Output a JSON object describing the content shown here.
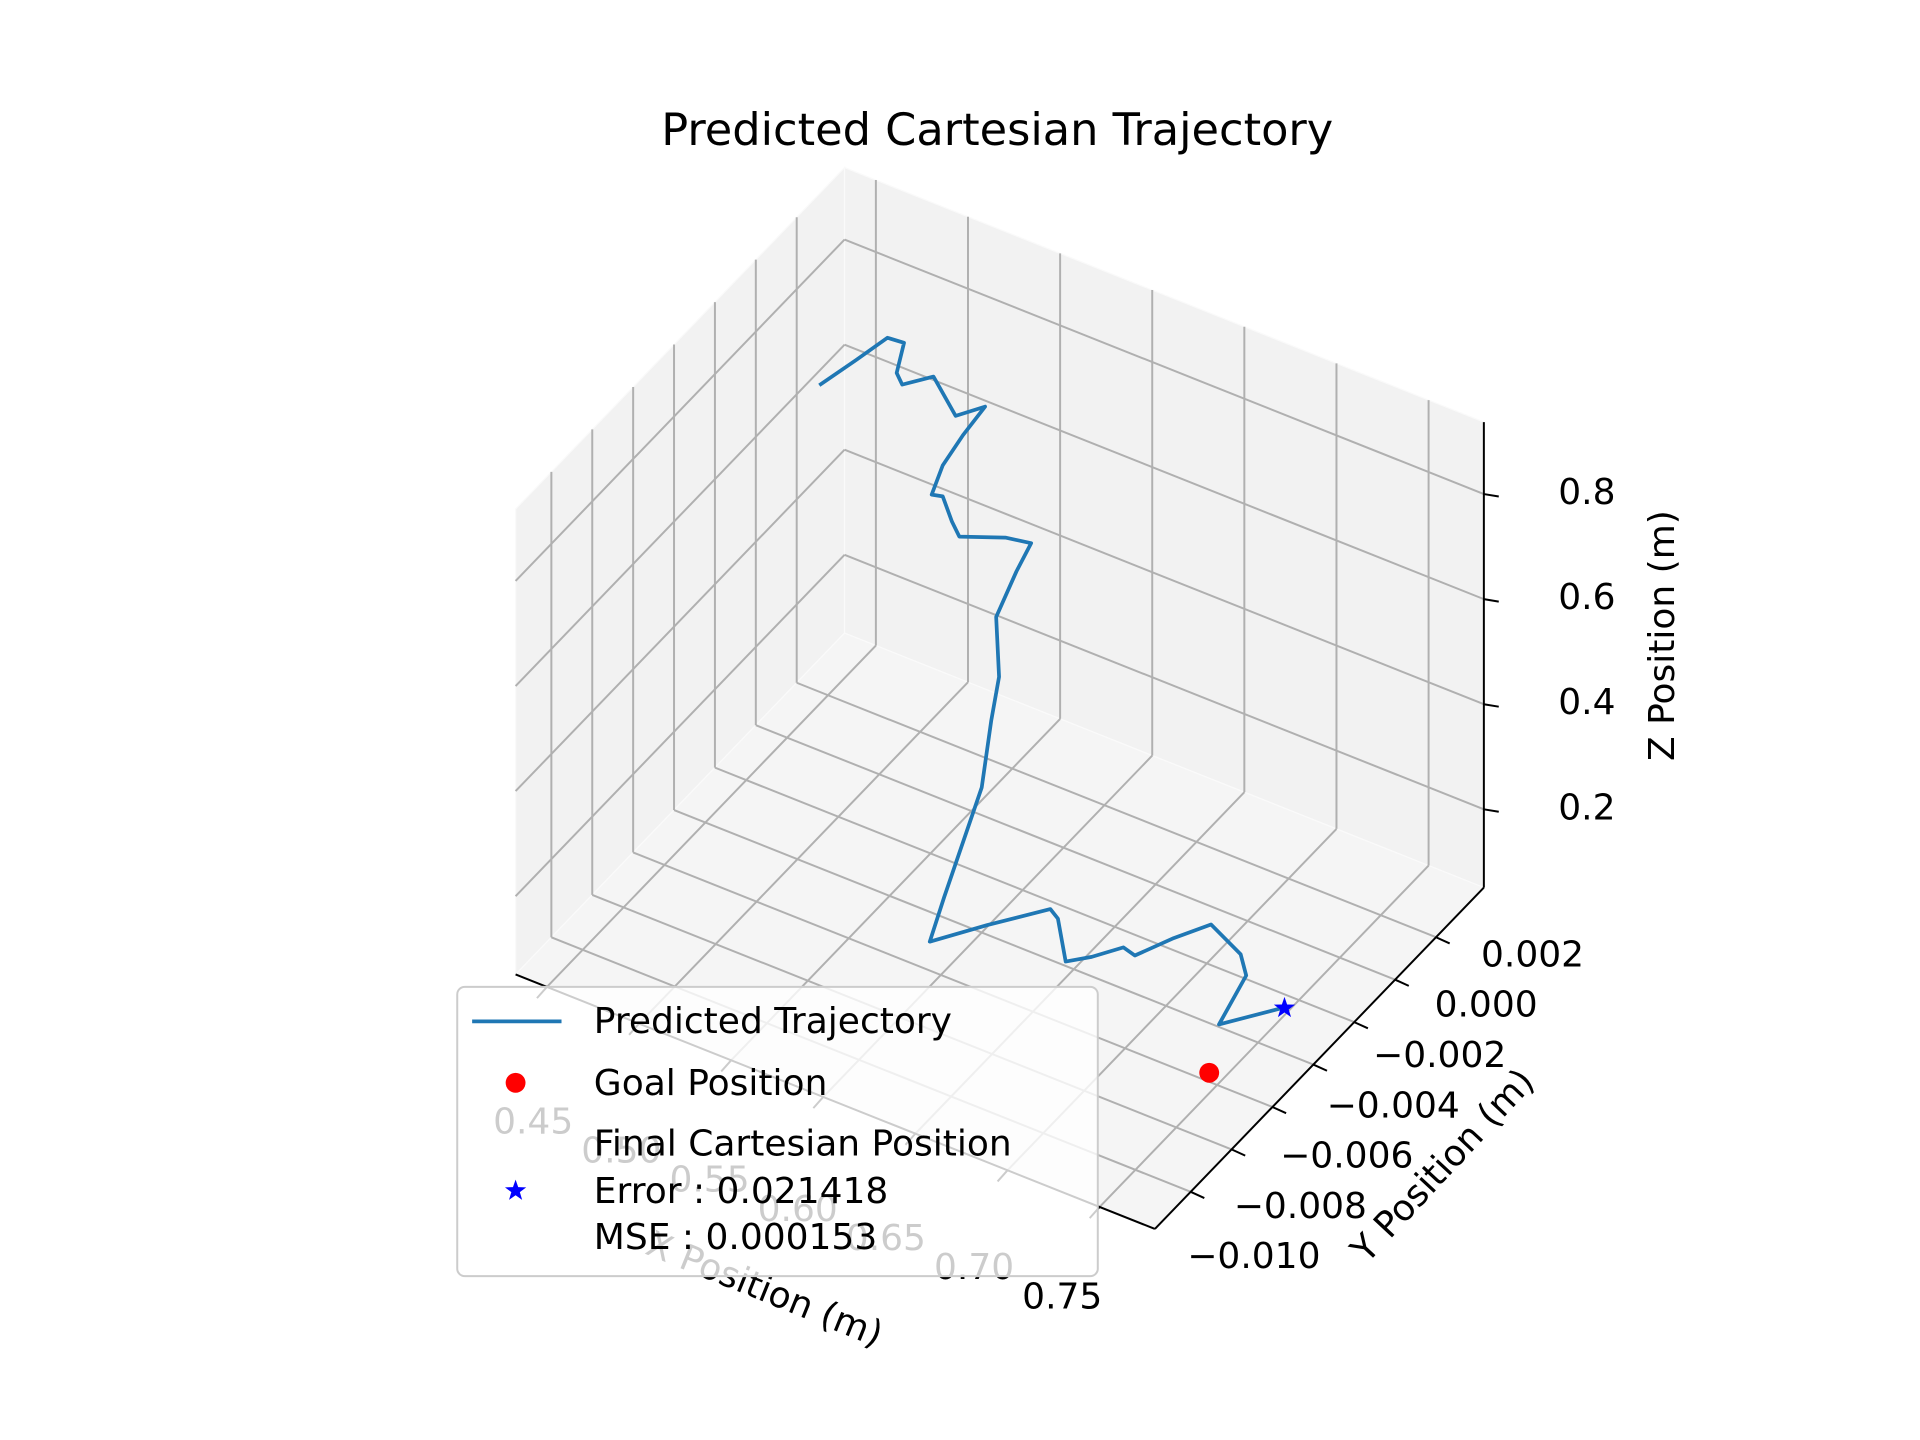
{
  "chart_data": {
    "type": "line3d",
    "title": "Predicted Cartesian Trajectory",
    "xlabel": "X Position (m)",
    "ylabel": "Y Position (m)",
    "zlabel": "Z Position (m)",
    "xlim": [
      0.433,
      0.78
    ],
    "ylim": [
      -0.01175,
      0.00434
    ],
    "zlim": [
      0.051,
      0.937
    ],
    "xticks": [
      0.45,
      {
        "value": 0.5,
        "label": "0.50"
      },
      0.55,
      {
        "value": 0.6,
        "label": "0.60"
      },
      0.65,
      {
        "value": 0.7,
        "label": "0.70"
      },
      0.75
    ],
    "yticks": [
      {
        "value": -0.01,
        "label": "−0.010"
      },
      {
        "value": -0.008,
        "label": "−0.008"
      },
      {
        "value": -0.006,
        "label": "−0.006"
      },
      {
        "value": -0.004,
        "label": "−0.004"
      },
      {
        "value": -0.002,
        "label": "−0.002"
      },
      {
        "value": 0,
        "label": "0.000"
      },
      {
        "value": 0.002,
        "label": "0.002"
      }
    ],
    "zticks": [
      0.2,
      0.4,
      0.6,
      0.8
    ],
    "grid": true,
    "legend": "lower left",
    "series": [
      {
        "name": "Predicted Trajectory",
        "type": "line",
        "color": "#1f77b4",
        "x": [
          0.473,
          0.493,
          0.51,
          0.519,
          0.515,
          0.518,
          0.535,
          0.547,
          0.563,
          0.551,
          0.54,
          0.534,
          0.54,
          0.545,
          0.549,
          0.574,
          0.588,
          0.58,
          0.569,
          0.585,
          0.593,
          0.6,
          0.594,
          0.594,
          0.623,
          0.655,
          0.658,
          0.66,
          0.673,
          0.688,
          0.692,
          0.712,
          0.73,
          0.745,
          0.748,
          0.731,
          0.767
        ],
        "y": [
          -0.0005,
          -0.0005,
          -0.0005,
          -0.0005,
          -0.0005,
          -0.0005,
          -0.0005,
          -0.0005,
          -0.0005,
          -0.0005,
          -0.0005,
          -0.0005,
          -0.0005,
          -0.0005,
          -0.0005,
          -0.0005,
          -0.0005,
          -0.0005,
          -0.0005,
          -0.0018,
          -0.0029,
          -0.004,
          -0.0053,
          -0.006,
          -0.0058,
          -0.0056,
          -0.0055,
          -0.0053,
          -0.0052,
          -0.005,
          -0.0048,
          -0.0047,
          -0.0045,
          -0.0044,
          -0.0044,
          -0.0042,
          -0.0042
        ],
        "z": [
          0.774,
          0.85,
          0.916,
          0.919,
          0.856,
          0.838,
          0.877,
          0.819,
          0.859,
          0.788,
          0.715,
          0.651,
          0.656,
          0.615,
          0.592,
          0.625,
          0.634,
          0.569,
          0.467,
          0.428,
          0.401,
          0.327,
          0.162,
          0.106,
          0.17,
          0.237,
          0.219,
          0.132,
          0.155,
          0.186,
          0.168,
          0.225,
          0.268,
          0.228,
          0.192,
          0.067,
          0.15
        ]
      },
      {
        "name": "Goal Position",
        "type": "scatter",
        "marker": "o",
        "color": "red",
        "x": [
          0.752
        ],
        "y": [
          -0.00657
        ],
        "z": [
          0.1
        ]
      },
      {
        "name": "Final Cartesian Position\nError : 0.021418\nMSE : 0.000153",
        "type": "scatter",
        "marker": "*",
        "color": "blue",
        "x": [
          0.767
        ],
        "y": [
          -0.00424
        ],
        "z": [
          0.15
        ]
      }
    ]
  }
}
